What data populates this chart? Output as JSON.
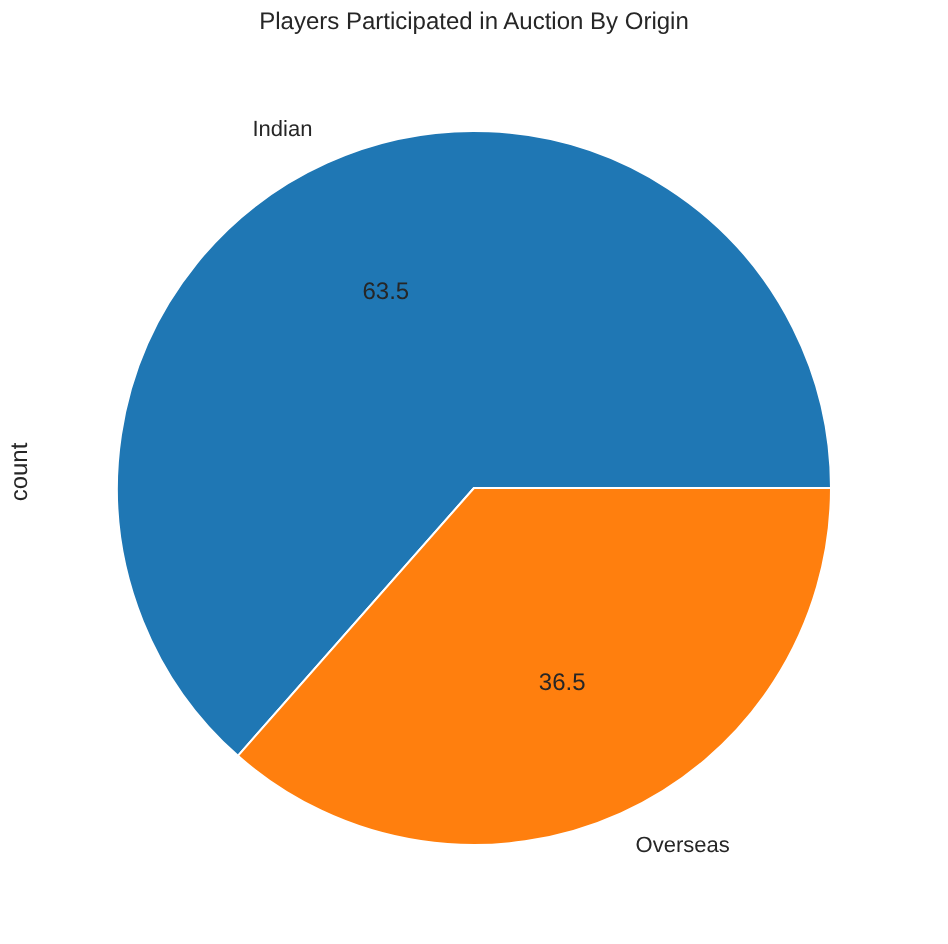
{
  "chart_data": {
    "type": "pie",
    "title": "Players Participated in Auction By Origin",
    "ylabel": "count",
    "categories": [
      "Indian",
      "Overseas"
    ],
    "values": [
      63.5,
      36.5
    ],
    "colors": [
      "#1f77b4",
      "#ff7f0e"
    ],
    "data_labels": true
  }
}
